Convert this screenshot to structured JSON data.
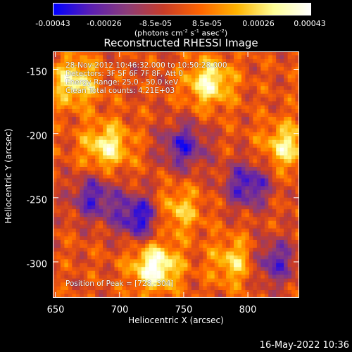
{
  "colorbar": {
    "ticks": [
      "-0.00043",
      "-0.00026",
      "-8.5e-05",
      "8.5e-05",
      "0.00026",
      "0.00043"
    ],
    "unit_prefix": "(photons cm",
    "unit_exp1": "-2",
    "unit_mid1": " s",
    "unit_exp2": "-1",
    "unit_mid2": " asec",
    "unit_exp3": "-2",
    "unit_suffix": ")",
    "colors": [
      "#0000ff",
      "#5a1eb4",
      "#8c3c78",
      "#c83c28",
      "#ff6400",
      "#ffb400",
      "#ffff96",
      "#ffffff"
    ]
  },
  "chart": {
    "title": "Reconstructed RHESSI Image",
    "annotations": [
      "28-Nov-2012 10:46:32.000 to 10:50:28.000",
      "Detectors: 3F 5F 6F 7F 8F, Att 0",
      "Energy Range: 25.0 - 50.0 keV",
      "Clean    Total counts: 4.21E+03"
    ],
    "peak_label": "Position of Peak = [728,-304]"
  },
  "chart_data": {
    "type": "heatmap",
    "title": "Reconstructed RHESSI Image",
    "xlabel": "Heliocentric X (arcsec)",
    "ylabel": "Heliocentric Y (arcsec)",
    "xlim": [
      648,
      840
    ],
    "ylim": [
      -328,
      -136
    ],
    "xticks": [
      650,
      700,
      750,
      800
    ],
    "yticks": [
      -150,
      -200,
      -250,
      -300
    ],
    "color_range": [
      -0.00043,
      0.00043
    ],
    "peak": [
      728,
      -304
    ],
    "bright_sources": [
      {
        "x": 728,
        "y": -304,
        "level": 1.0
      },
      {
        "x": 690,
        "y": -210,
        "level": 0.75
      },
      {
        "x": 770,
        "y": -160,
        "level": 0.8
      },
      {
        "x": 665,
        "y": -160,
        "level": 0.75
      },
      {
        "x": 830,
        "y": -210,
        "level": 0.7
      },
      {
        "x": 790,
        "y": -300,
        "level": 0.6
      },
      {
        "x": 745,
        "y": -260,
        "level": 0.55
      }
    ],
    "dark_regions": [
      {
        "x": 715,
        "y": -265,
        "level": -0.9
      },
      {
        "x": 800,
        "y": -240,
        "level": -0.8
      },
      {
        "x": 680,
        "y": -250,
        "level": -0.7
      },
      {
        "x": 750,
        "y": -210,
        "level": -0.75
      },
      {
        "x": 820,
        "y": -300,
        "level": -0.7
      }
    ]
  },
  "axes": {
    "xlabel": "Heliocentric X (arcsec)",
    "ylabel": "Heliocentric Y (arcsec)",
    "xticks": [
      "650",
      "700",
      "750",
      "800"
    ],
    "yticks": [
      "-150",
      "-200",
      "-250",
      "-300"
    ]
  },
  "footer": {
    "timestamp": "16-May-2022 10:36"
  }
}
